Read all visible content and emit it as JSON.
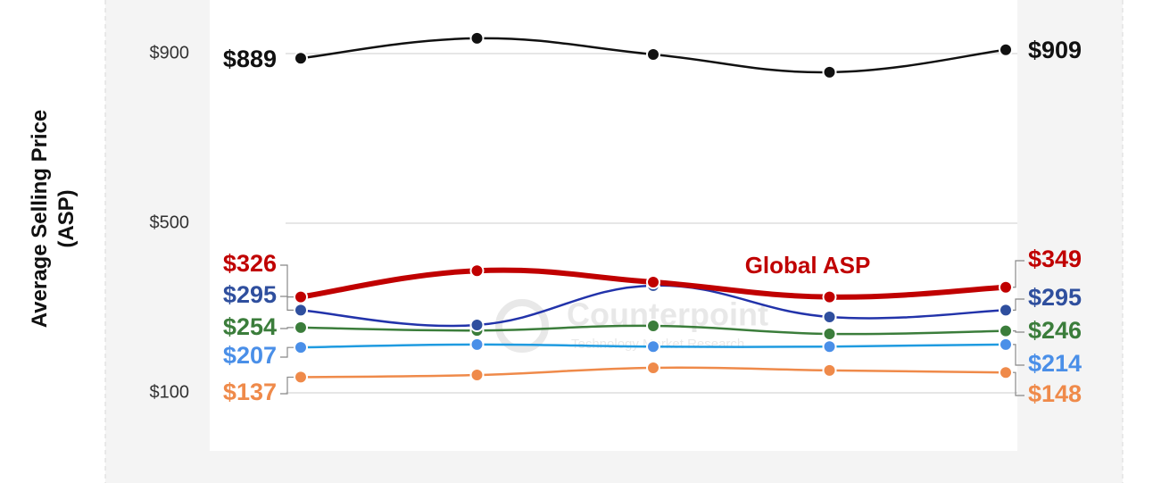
{
  "chart_data": {
    "type": "line",
    "ylabel": "Average Selling Price (ASP)",
    "annotations": [
      "Global ASP"
    ],
    "watermark": [
      "Counterpoint",
      "Technology Market Research"
    ],
    "categories": [
      null,
      null,
      null,
      null,
      null
    ],
    "ylim": [
      0,
      1000
    ],
    "yticks": [
      {
        "value": 100,
        "label": "$100"
      },
      {
        "value": 500,
        "label": "$500"
      },
      {
        "value": 900,
        "label": "$900"
      }
    ],
    "grid": true,
    "series": [
      {
        "color": "#111111",
        "values": [
          889,
          936,
          898,
          856,
          909
        ],
        "value_labels": [
          "$889",
          null,
          null,
          null,
          "$909"
        ]
      },
      {
        "color": "#c00000",
        "values": [
          326,
          388,
          361,
          326,
          349
        ],
        "value_labels": [
          "$326",
          null,
          null,
          null,
          "$349"
        ]
      },
      {
        "color": "#2f4f9e",
        "values": [
          295,
          260,
          353,
          279,
          295
        ],
        "value_labels": [
          "$295",
          null,
          null,
          null,
          "$295"
        ]
      },
      {
        "color": "#3b7d3b",
        "values": [
          254,
          247,
          258,
          239,
          246
        ],
        "value_labels": [
          "$254",
          null,
          null,
          null,
          "$246"
        ]
      },
      {
        "color": "#4a8fe8",
        "values": [
          207,
          214,
          209,
          209,
          214
        ],
        "value_labels": [
          "$207",
          null,
          null,
          null,
          "$214"
        ]
      },
      {
        "color": "#ef8a4a",
        "values": [
          137,
          142,
          159,
          153,
          148
        ],
        "value_labels": [
          "$137",
          null,
          null,
          null,
          "$148"
        ]
      }
    ]
  }
}
